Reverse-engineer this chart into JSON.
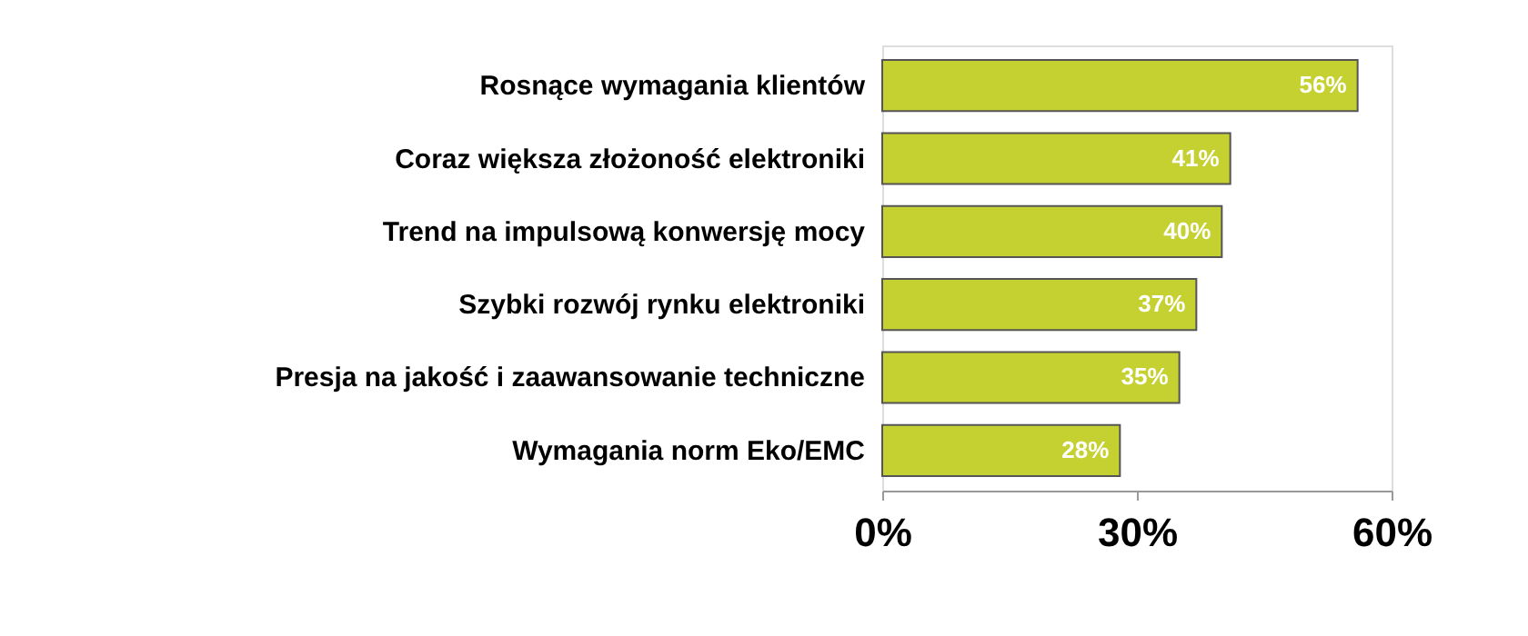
{
  "chart_data": {
    "type": "bar",
    "orientation": "horizontal",
    "categories": [
      "Rosnące wymagania klientów",
      "Coraz większa złożoność elektroniki",
      "Trend na impulsową konwersję mocy",
      "Szybki rozwój rynku elektroniki",
      "Presja na jakość i zaawansowanie techniczne",
      "Wymagania norm Eko/EMC"
    ],
    "values": [
      56,
      41,
      40,
      37,
      35,
      28
    ],
    "value_labels": [
      "56%",
      "41%",
      "40%",
      "37%",
      "35%",
      "28%"
    ],
    "color": "#c5d130",
    "xlim": [
      0,
      60
    ],
    "xticks": [
      {
        "value": 0,
        "label": "0%"
      },
      {
        "value": 30,
        "label": "30%"
      },
      {
        "value": 60,
        "label": "60%"
      }
    ],
    "grid": false
  }
}
